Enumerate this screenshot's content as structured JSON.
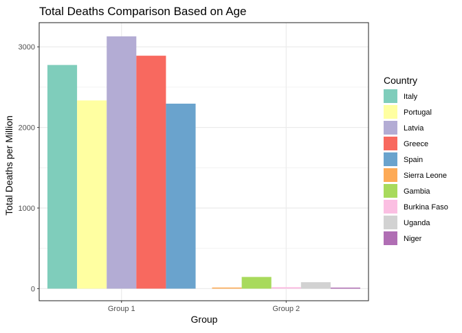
{
  "chart_data": {
    "type": "bar",
    "title": "Total Deaths Comparison Based on Age",
    "xlabel": "Group",
    "ylabel": "Total Deaths per Million",
    "categories": [
      "Group 1",
      "Group 2"
    ],
    "ylim": [
      -150,
      3300
    ],
    "yticks": [
      0,
      1000,
      2000,
      3000
    ],
    "grid": true,
    "legend": {
      "title": "Country",
      "placement": "right"
    },
    "groups": [
      {
        "category": "Group 1",
        "series": [
          {
            "name": "Italy",
            "value": 2775,
            "color": "#7fcdbb"
          },
          {
            "name": "Portugal",
            "value": 2335,
            "color": "#ffffa1"
          },
          {
            "name": "Latvia",
            "value": 3130,
            "color": "#b3acd4"
          },
          {
            "name": "Greece",
            "value": 2890,
            "color": "#f8695f"
          },
          {
            "name": "Spain",
            "value": 2295,
            "color": "#6aa3cd"
          }
        ]
      },
      {
        "category": "Group 2",
        "series": [
          {
            "name": "Sierra Leone",
            "value": 14,
            "color": "#fdaa56"
          },
          {
            "name": "Gambia",
            "value": 145,
            "color": "#a8da5c"
          },
          {
            "name": "Burkina Faso",
            "value": 18,
            "color": "#fbbfe2"
          },
          {
            "name": "Uganda",
            "value": 80,
            "color": "#d2d2d2"
          },
          {
            "name": "Niger",
            "value": 13,
            "color": "#b06eb4"
          }
        ]
      }
    ]
  }
}
